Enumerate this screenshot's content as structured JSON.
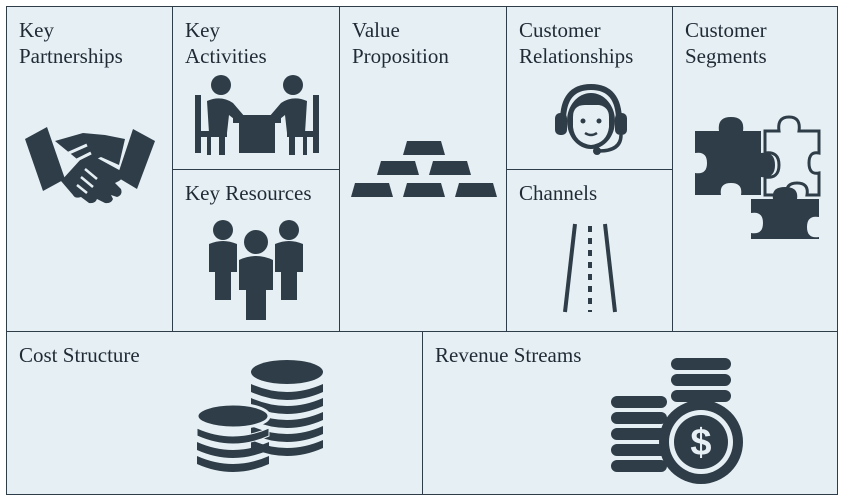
{
  "canvas": {
    "background_color": "#e6f0f4",
    "icon_color": "#2f3d49",
    "border_color": "#2f3d49"
  },
  "blocks": {
    "key_partnerships": {
      "label": "Key\nPartnerships",
      "icon": "handshake-icon"
    },
    "key_activities": {
      "label": "Key\nActivities",
      "icon": "meeting-icon"
    },
    "key_resources": {
      "label": "Key Resources",
      "icon": "people-group-icon"
    },
    "value_proposition": {
      "label": "Value\nProposition",
      "icon": "gold-bars-icon"
    },
    "customer_relationships": {
      "label": "Customer\nRelationships",
      "icon": "headset-agent-icon"
    },
    "channels": {
      "label": "Channels",
      "icon": "road-icon"
    },
    "customer_segments": {
      "label": "Customer\nSegments",
      "icon": "puzzle-pieces-icon"
    },
    "cost_structure": {
      "label": "Cost Structure",
      "icon": "coin-stacks-icon"
    },
    "revenue_streams": {
      "label": "Revenue Streams",
      "icon": "dollar-coins-icon"
    }
  }
}
